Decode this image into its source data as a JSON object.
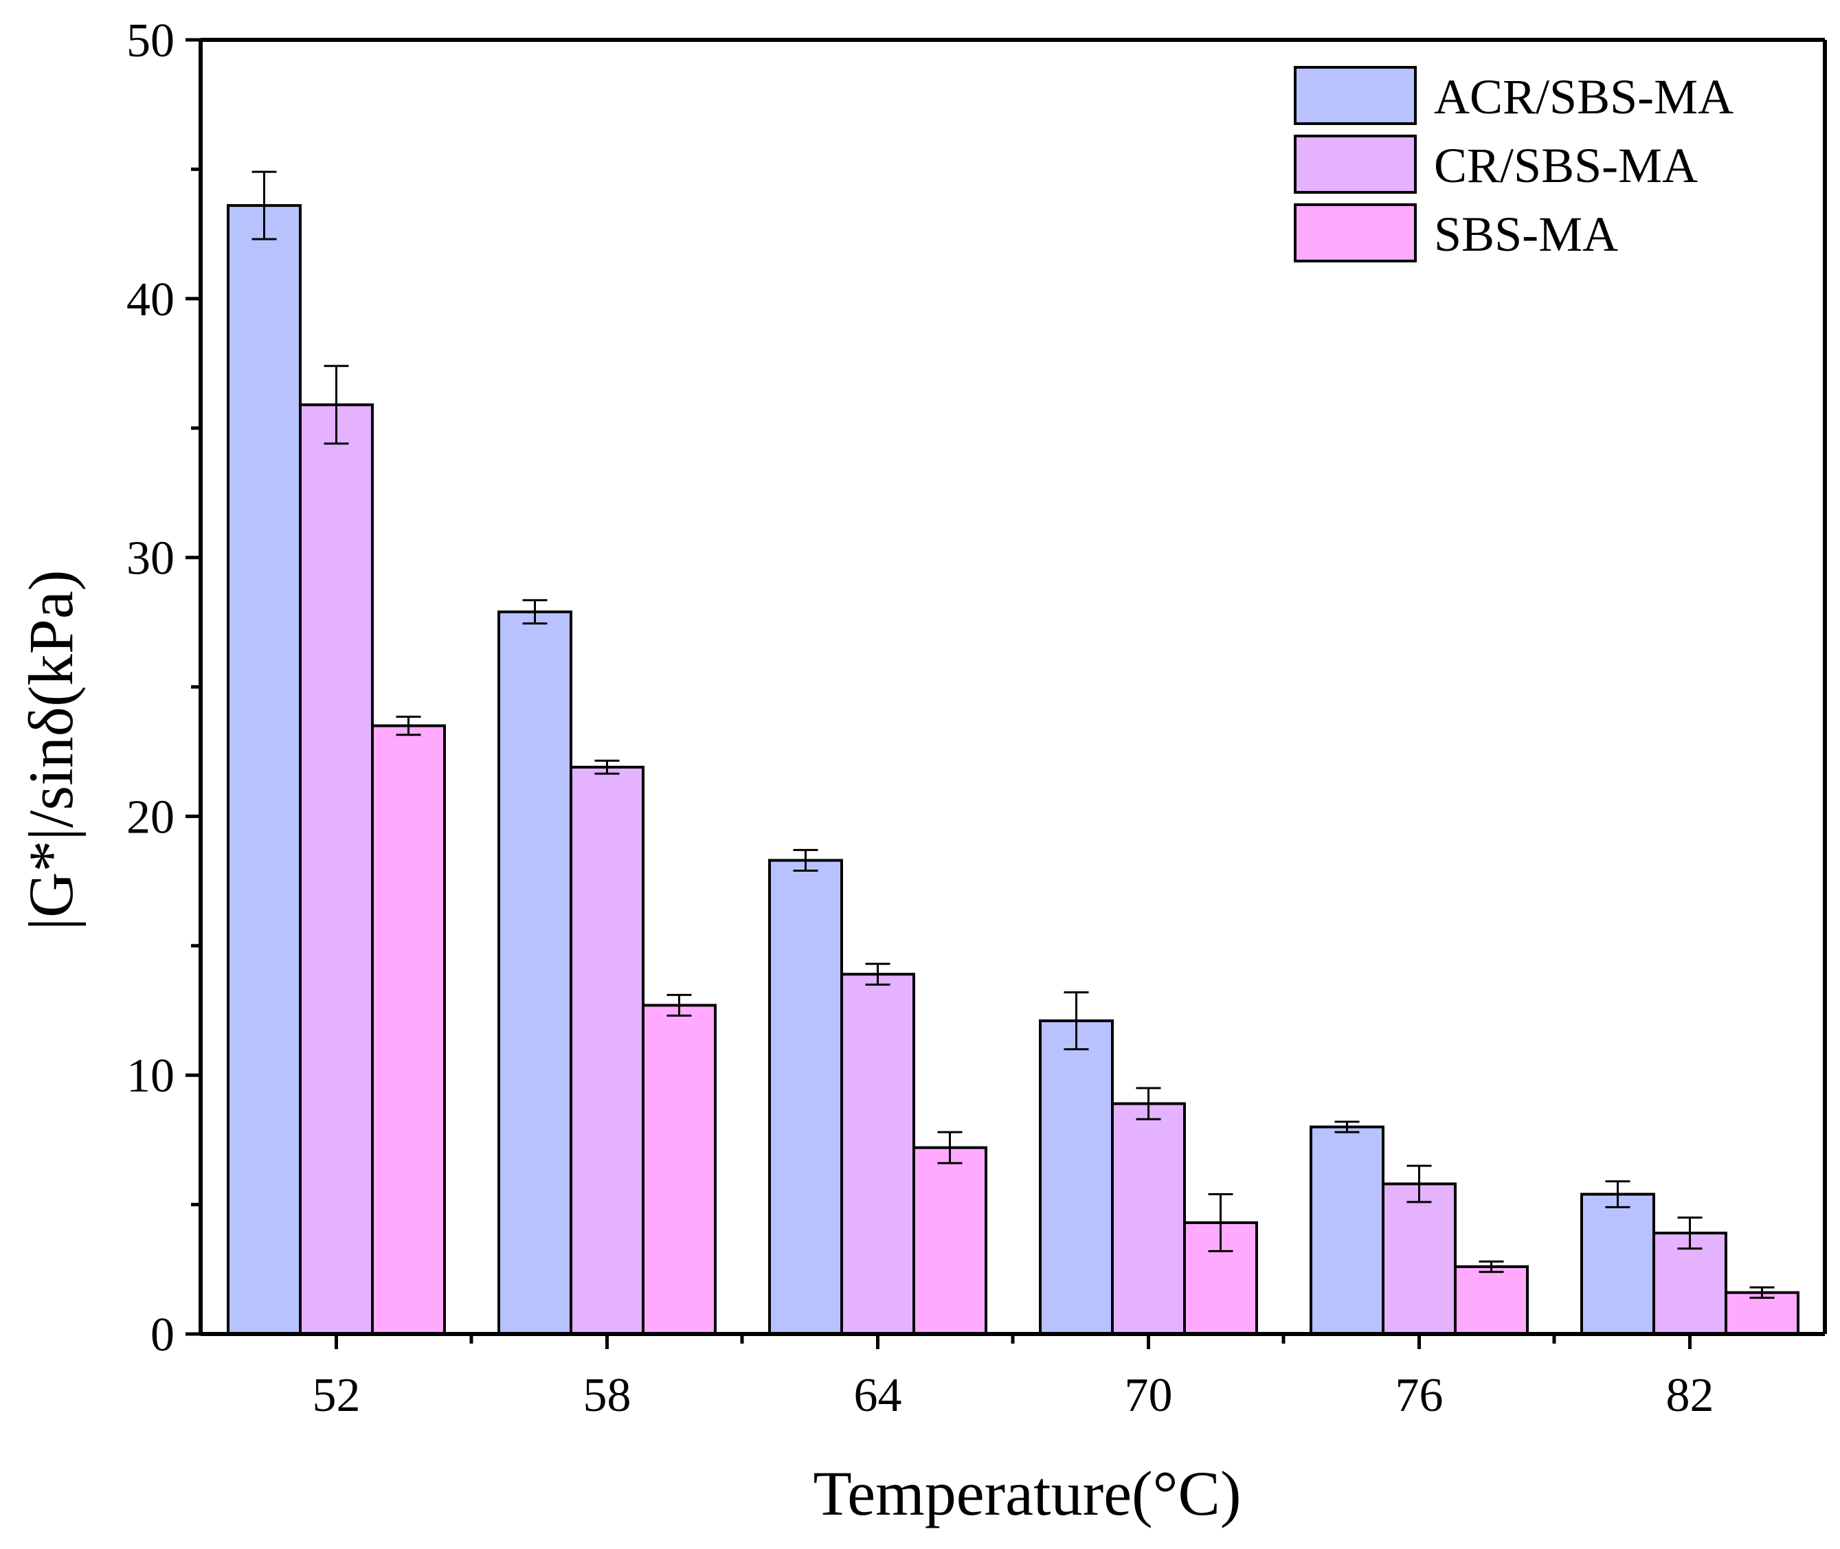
{
  "chart_data": {
    "type": "bar",
    "title": "",
    "xlabel": "Temperature(°C)",
    "ylabel": "|G*|/sinδ(kPa)",
    "categories": [
      "52",
      "58",
      "64",
      "70",
      "76",
      "82"
    ],
    "ylim": [
      0,
      50
    ],
    "yticks": [
      "0",
      "10",
      "20",
      "30",
      "40",
      "50"
    ],
    "grid": false,
    "legend_position": "top-right",
    "series": [
      {
        "name": "ACR/SBS-MA",
        "color": "#b8c2ff",
        "values": [
          43.6,
          27.9,
          18.3,
          12.1,
          8.0,
          5.4
        ],
        "errors": [
          1.3,
          0.45,
          0.4,
          1.1,
          0.2,
          0.5
        ]
      },
      {
        "name": "CR/SBS-MA",
        "color": "#e4b2ff",
        "values": [
          35.9,
          21.9,
          13.9,
          8.9,
          5.8,
          3.9
        ],
        "errors": [
          1.5,
          0.25,
          0.4,
          0.6,
          0.7,
          0.6
        ]
      },
      {
        "name": "SBS-MA",
        "color": "#ffaaff",
        "values": [
          23.5,
          12.7,
          7.2,
          4.3,
          2.6,
          1.6
        ],
        "errors": [
          0.35,
          0.4,
          0.6,
          1.1,
          0.2,
          0.2
        ]
      }
    ]
  }
}
